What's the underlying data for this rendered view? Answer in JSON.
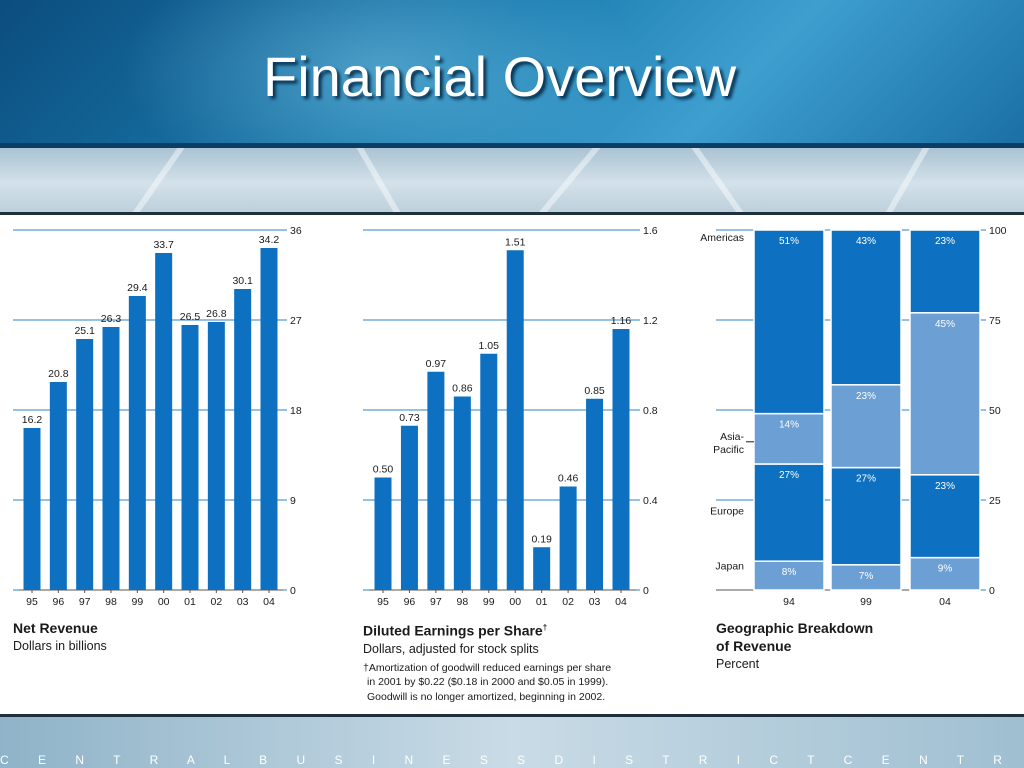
{
  "title": "Financial Overview",
  "footer_text": "C E N T R A L B U S I N E S S D I S T R I C T C E N T R A L B U S I N E S S D I S T R I C T C E N T R A",
  "colors": {
    "bar": "#0d70c0",
    "bar_light": "#6c9fd4",
    "axis": "#2f81c7",
    "text": "#1a1a1a"
  },
  "chart_data": [
    {
      "type": "bar",
      "title": "Net Revenue",
      "subtitle": "Dollars in billions",
      "categories": [
        "95",
        "96",
        "97",
        "98",
        "99",
        "00",
        "01",
        "02",
        "03",
        "04"
      ],
      "values": [
        16.2,
        20.8,
        25.1,
        26.3,
        29.4,
        33.7,
        26.5,
        26.8,
        30.1,
        34.2
      ],
      "value_labels": [
        "16.2",
        "20.8",
        "25.1",
        "26.3",
        "29.4",
        "33.7",
        "26.5",
        "26.8",
        "30.1",
        "34.2"
      ],
      "ylim": [
        0,
        36
      ],
      "yticks": [
        "0",
        "9",
        "18",
        "27",
        "36"
      ],
      "grid": true
    },
    {
      "type": "bar",
      "title": "Diluted Earnings per Share",
      "title_mark": "†",
      "subtitle": "Dollars, adjusted for stock splits",
      "footnote": [
        "†Amortization of goodwill reduced earnings per share",
        "in 2001 by $0.22 ($0.18 in 2000 and $0.05 in 1999).",
        "Goodwill is no longer amortized, beginning in 2002."
      ],
      "categories": [
        "95",
        "96",
        "97",
        "98",
        "99",
        "00",
        "01",
        "02",
        "03",
        "04"
      ],
      "values": [
        0.5,
        0.73,
        0.97,
        0.86,
        1.05,
        1.51,
        0.19,
        0.46,
        0.85,
        1.16
      ],
      "value_labels": [
        "0.50",
        "0.73",
        "0.97",
        "0.86",
        "1.05",
        "1.51",
        "0.19",
        "0.46",
        "0.85",
        "1.16"
      ],
      "ylim": [
        0,
        1.6
      ],
      "yticks": [
        "0",
        "0.4",
        "0.8",
        "1.2",
        "1.6"
      ],
      "grid": true
    },
    {
      "type": "bar",
      "stacked": true,
      "title": "Geographic Breakdown",
      "title_line2": "of Revenue",
      "subtitle": "Percent",
      "categories": [
        "94",
        "99",
        "04"
      ],
      "series": [
        {
          "name": "Japan",
          "values": [
            8,
            7,
            9
          ],
          "labels": [
            "8%",
            "7%",
            "9%"
          ]
        },
        {
          "name": "Europe",
          "values": [
            27,
            27,
            23
          ],
          "labels": [
            "27%",
            "27%",
            "23%"
          ]
        },
        {
          "name": "Asia-Pacific",
          "values": [
            14,
            23,
            45
          ],
          "labels": [
            "14%",
            "23%",
            "45%"
          ]
        },
        {
          "name": "Americas",
          "values": [
            51,
            43,
            23
          ],
          "labels": [
            "51%",
            "43%",
            "23%"
          ]
        }
      ],
      "legend_labels": [
        "Japan",
        "Europe",
        "Asia-\nPacific",
        "Americas"
      ],
      "ylim": [
        0,
        100
      ],
      "yticks": [
        "0",
        "25",
        "50",
        "75",
        "100"
      ],
      "grid": true
    }
  ]
}
